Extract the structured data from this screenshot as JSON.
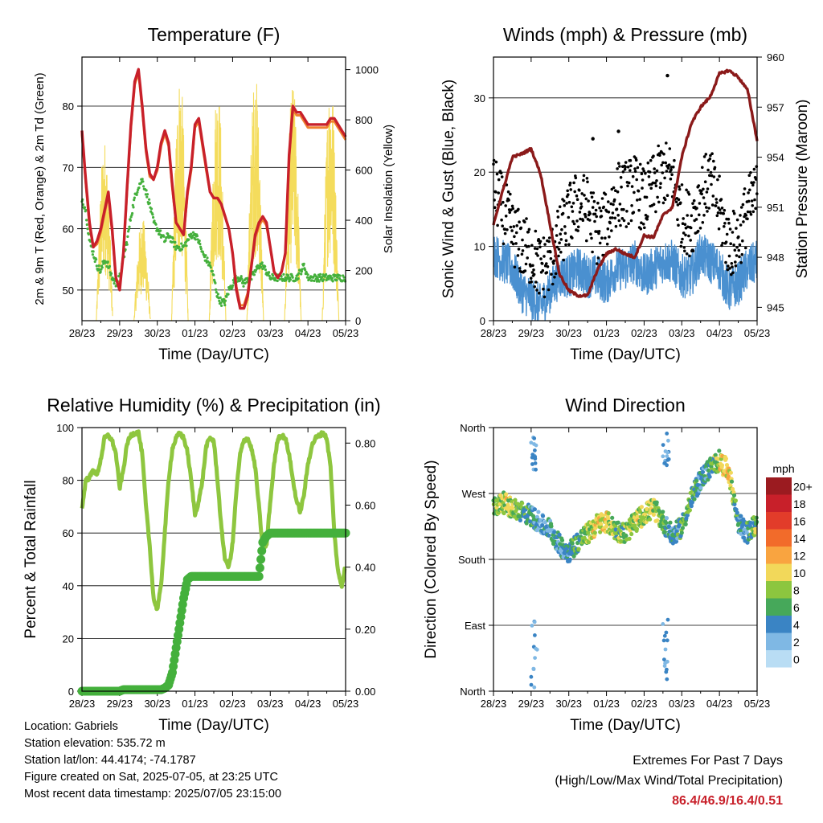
{
  "x_ticks": [
    "28/23",
    "29/23",
    "30/23",
    "01/23",
    "02/23",
    "03/23",
    "04/23",
    "05/23"
  ],
  "xlabel": "Time (Day/UTC)",
  "info": {
    "location": "Location: Gabriels",
    "elevation": "Station elevation: 535.72 m",
    "latlon": "Station lat/lon: 44.4174; -74.1787",
    "created": "Figure created on Sat, 2025-07-05, at 23:25 UTC",
    "recent": "Most recent data timestamp: 2025/07/05 23:15:00"
  },
  "extremes": {
    "title": "Extremes For Past 7 Days",
    "subtitle": "(High/Low/Max Wind/Total Precipitation)",
    "values": "86.4/46.9/16.4/0.51"
  },
  "colors": {
    "temp2m": "#c8202a",
    "temp9m": "#f08030",
    "dewpoint": "#44b03c",
    "solar": "#f4dc5c",
    "sonic": "#4a90d0",
    "gust": "#000000",
    "pressure": "#8b1a1a",
    "rh": "#8ec63f",
    "precip": "#44b03c"
  },
  "chart_data": [
    {
      "type": "line",
      "title": "Temperature (F)",
      "xlabel": "Time (Day/UTC)",
      "ylabel": "2m & 9m T (Red, Orange) & 2m Td (Green)",
      "y2label": "Solar Insolation (Yellow)",
      "ylim": [
        45,
        88
      ],
      "yticks": [
        50,
        60,
        70,
        80
      ],
      "y2lim": [
        0,
        1050
      ],
      "y2ticks": [
        0,
        200,
        400,
        600,
        800,
        1000
      ],
      "grid": true,
      "x": [
        0,
        0.1,
        0.2,
        0.3,
        0.4,
        0.5,
        0.6,
        0.7,
        0.8,
        0.9,
        1.0,
        1.1,
        1.2,
        1.3,
        1.4,
        1.5,
        1.6,
        1.7,
        1.8,
        1.9,
        2.0,
        2.1,
        2.2,
        2.3,
        2.4,
        2.5,
        2.6,
        2.7,
        2.8,
        2.9,
        3.0,
        3.1,
        3.2,
        3.3,
        3.4,
        3.5,
        3.6,
        3.7,
        3.8,
        3.9,
        4.0,
        4.1,
        4.2,
        4.3,
        4.4,
        4.5,
        4.6,
        4.7,
        4.8,
        4.9,
        5.0,
        5.1,
        5.2,
        5.3,
        5.4,
        5.5,
        5.6,
        5.7,
        5.8,
        5.9,
        6.0,
        6.1,
        6.2,
        6.3,
        6.4,
        6.5,
        6.6,
        6.7,
        6.8,
        6.9,
        7.0
      ],
      "series": [
        {
          "name": "2m T",
          "values": [
            76,
            68,
            61,
            57,
            58,
            60,
            63,
            66,
            60,
            52,
            50,
            56,
            67,
            77,
            84,
            86,
            80,
            73,
            69,
            68,
            70,
            74,
            76,
            74,
            67,
            61,
            60,
            59,
            66,
            70,
            77,
            78,
            74,
            70,
            66,
            65,
            65,
            64,
            62,
            60,
            56,
            50,
            47,
            47,
            49,
            54,
            59,
            61,
            62,
            61,
            57,
            53,
            52,
            53,
            56,
            72,
            80,
            79,
            79,
            78,
            77,
            77,
            77,
            77,
            77,
            77,
            78,
            78,
            77,
            76,
            75
          ]
        },
        {
          "name": "9m T",
          "values": [
            75.5,
            67.5,
            60.5,
            57,
            57.5,
            59.5,
            62.5,
            65.5,
            59.5,
            52,
            50.5,
            56,
            66.5,
            76.5,
            83.5,
            85.5,
            79.5,
            72.5,
            68.5,
            68,
            69.5,
            73.5,
            75.5,
            73.5,
            66.5,
            61,
            60,
            59,
            65.5,
            69.5,
            76.5,
            77.5,
            73.5,
            69.5,
            66,
            65,
            65,
            64,
            62,
            60,
            56,
            50.5,
            47.5,
            47.5,
            49.5,
            54,
            58.5,
            60.5,
            61.5,
            60.5,
            57,
            53,
            52,
            53,
            56,
            71.5,
            79.5,
            78.5,
            78.5,
            77.5,
            76.5,
            76.5,
            76.5,
            76.5,
            76.5,
            76.5,
            77.5,
            77.5,
            76.5,
            75.5,
            74.5
          ]
        },
        {
          "name": "2m Td",
          "values": [
            65,
            63,
            58,
            56,
            54,
            53,
            55,
            54,
            52,
            51,
            52,
            55,
            58,
            62,
            65,
            67,
            68,
            66,
            64,
            61,
            60,
            59,
            58,
            59,
            58,
            57,
            57,
            57,
            58,
            59,
            59,
            58,
            56,
            55,
            54,
            52,
            49,
            48,
            48,
            50,
            51,
            52,
            52,
            51,
            52,
            52,
            53,
            54,
            54,
            53,
            52,
            52,
            52,
            52,
            52,
            52,
            52,
            52,
            53,
            54,
            52,
            52,
            52,
            52,
            52,
            52,
            52,
            52,
            52,
            52,
            52
          ]
        }
      ],
      "solar_peaks": [
        {
          "day": 0.6,
          "value": 730
        },
        {
          "day": 1.6,
          "value": 420
        },
        {
          "day": 2.6,
          "value": 1000
        },
        {
          "day": 3.6,
          "value": 960
        },
        {
          "day": 4.6,
          "value": 1000
        },
        {
          "day": 5.6,
          "value": 950
        },
        {
          "day": 6.6,
          "value": 1000
        }
      ]
    },
    {
      "type": "line",
      "title": "Winds (mph) & Pressure (mb)",
      "xlabel": "Time (Day/UTC)",
      "ylabel": "Sonic Wind & Gust (Blue, Black)",
      "y2label": "Station Pressure (Maroon)",
      "ylim": [
        0,
        35.5
      ],
      "yticks": [
        0,
        10,
        20,
        30
      ],
      "y2lim": [
        944.2,
        960
      ],
      "y2ticks": [
        945,
        948,
        951,
        954,
        957,
        960
      ],
      "grid": true,
      "x": [
        0,
        0.25,
        0.5,
        0.75,
        1.0,
        1.25,
        1.5,
        1.75,
        2.0,
        2.25,
        2.5,
        2.75,
        3.0,
        3.25,
        3.5,
        3.75,
        4.0,
        4.25,
        4.5,
        4.75,
        5.0,
        5.25,
        5.5,
        5.75,
        6.0,
        6.25,
        6.5,
        6.75,
        7.0
      ],
      "series": [
        {
          "name": "Pressure",
          "values": [
            950,
            952,
            954,
            954.2,
            954.5,
            953,
            950,
            947,
            946,
            945.7,
            945.7,
            947.2,
            948.2,
            948.5,
            948.2,
            948,
            949.3,
            949.2,
            950.5,
            951,
            954,
            956,
            957,
            957.6,
            959,
            959.2,
            958.8,
            958,
            955
          ]
        },
        {
          "name": "Sonic Wind",
          "values": [
            9,
            8,
            7,
            4,
            3,
            2,
            4,
            6,
            6,
            7,
            6,
            6,
            5,
            7,
            7,
            8,
            6,
            7,
            8,
            8,
            6,
            6,
            9,
            8,
            7,
            4,
            5,
            7,
            8
          ]
        },
        {
          "name": "Gust",
          "values": [
            18,
            15,
            12,
            10,
            9,
            7,
            8,
            11,
            14,
            16,
            15,
            12,
            13,
            17,
            17,
            18,
            16,
            18,
            20,
            19,
            14,
            13,
            17,
            19,
            15,
            10,
            11,
            15,
            17
          ]
        }
      ],
      "outliers": [
        {
          "day": 2.64,
          "value": 24.5
        },
        {
          "day": 3.32,
          "value": 25.5
        },
        {
          "day": 4.62,
          "value": 33
        }
      ]
    },
    {
      "type": "line",
      "title": "Relative Humidity (%) & Precipitation (in)",
      "xlabel": "Time (Day/UTC)",
      "ylabel": "Percent & Total Rainfall",
      "ylim": [
        0,
        100
      ],
      "yticks": [
        0,
        20,
        40,
        60,
        80,
        100
      ],
      "y2lim": [
        0,
        0.85
      ],
      "y2ticks": [
        "0.00",
        "0.20",
        "0.40",
        "0.60",
        "0.80"
      ],
      "grid": true,
      "x": [
        0,
        0.1,
        0.2,
        0.3,
        0.4,
        0.5,
        0.6,
        0.7,
        0.8,
        0.9,
        1.0,
        1.1,
        1.2,
        1.3,
        1.4,
        1.5,
        1.6,
        1.7,
        1.8,
        1.9,
        2.0,
        2.1,
        2.2,
        2.3,
        2.4,
        2.5,
        2.6,
        2.7,
        2.8,
        2.9,
        3.0,
        3.1,
        3.2,
        3.3,
        3.4,
        3.5,
        3.6,
        3.7,
        3.8,
        3.9,
        4.0,
        4.1,
        4.2,
        4.3,
        4.4,
        4.5,
        4.6,
        4.7,
        4.8,
        4.9,
        5.0,
        5.1,
        5.2,
        5.3,
        5.4,
        5.5,
        5.6,
        5.7,
        5.8,
        5.9,
        6.0,
        6.1,
        6.2,
        6.3,
        6.4,
        6.5,
        6.6,
        6.7,
        6.8,
        6.9,
        7.0
      ],
      "series": [
        {
          "name": "RH",
          "values": [
            69,
            80,
            81,
            84,
            82,
            88,
            96,
            97,
            95,
            90,
            77,
            84,
            94,
            97,
            98,
            98,
            90,
            70,
            55,
            35,
            31,
            40,
            60,
            80,
            92,
            96,
            98,
            96,
            91,
            80,
            67,
            72,
            80,
            93,
            96,
            95,
            80,
            62,
            50,
            47,
            56,
            76,
            90,
            95,
            96,
            92,
            85,
            70,
            54,
            55,
            72,
            86,
            96,
            97,
            96,
            90,
            80,
            72,
            68,
            75,
            86,
            93,
            96,
            97,
            98,
            96,
            85,
            60,
            45,
            40,
            48
          ]
        },
        {
          "name": "Precip",
          "values": [
            0,
            0,
            0,
            0,
            0,
            0,
            0,
            0,
            0,
            0,
            0,
            0.005,
            0.005,
            0.005,
            0.005,
            0.005,
            0.005,
            0.005,
            0.005,
            0.005,
            0.005,
            0.005,
            0.01,
            0.02,
            0.06,
            0.14,
            0.22,
            0.3,
            0.36,
            0.37,
            0.37,
            0.37,
            0.37,
            0.37,
            0.37,
            0.37,
            0.37,
            0.37,
            0.37,
            0.37,
            0.37,
            0.37,
            0.37,
            0.37,
            0.37,
            0.37,
            0.37,
            0.37,
            0.48,
            0.5,
            0.51,
            0.51,
            0.51,
            0.51,
            0.51,
            0.51,
            0.51,
            0.51,
            0.51,
            0.51,
            0.51,
            0.51,
            0.51,
            0.51,
            0.51,
            0.51,
            0.51,
            0.51,
            0.51,
            0.51,
            0.51
          ]
        }
      ]
    },
    {
      "type": "scatter",
      "title": "Wind Direction",
      "xlabel": "Time (Day/UTC)",
      "ylabel": "Direction (Colored By Speed)",
      "yticks": [
        "North",
        "East",
        "South",
        "West",
        "North"
      ],
      "ylim": [
        0,
        360
      ],
      "grid": true,
      "legend": {
        "title": "mph",
        "position": "right",
        "labels": [
          "20+",
          "18",
          "16",
          "14",
          "12",
          "10",
          "8",
          "6",
          "4",
          "2",
          "0"
        ],
        "colors": [
          "#9b1b20",
          "#c8202a",
          "#e23c2a",
          "#f26b2a",
          "#f9a440",
          "#f2d85a",
          "#8cc63f",
          "#46a85a",
          "#3a84c4",
          "#7fb8e4",
          "#b9ddf4"
        ]
      },
      "x": [
        0,
        0.25,
        0.5,
        0.75,
        1.0,
        1.25,
        1.5,
        1.75,
        2.0,
        2.25,
        2.5,
        2.75,
        3.0,
        3.25,
        3.5,
        3.75,
        4.0,
        4.25,
        4.5,
        4.75,
        5.0,
        5.25,
        5.5,
        5.75,
        6.0,
        6.25,
        6.5,
        6.75,
        7.0
      ],
      "direction": [
        250,
        258,
        250,
        245,
        240,
        228,
        222,
        200,
        190,
        205,
        215,
        228,
        232,
        220,
        215,
        230,
        242,
        250,
        232,
        212,
        225,
        262,
        290,
        305,
        315,
        300,
        230,
        215,
        230
      ],
      "speed": [
        7,
        9,
        8,
        6,
        5,
        3,
        4,
        4,
        5,
        6,
        8,
        10,
        9,
        7,
        7,
        9,
        8,
        9,
        6,
        4,
        6,
        7,
        4,
        5,
        9,
        10,
        4,
        5,
        8
      ]
    }
  ]
}
